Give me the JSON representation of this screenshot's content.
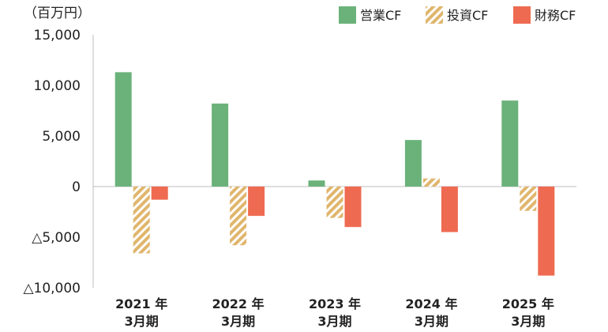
{
  "chart_data": {
    "type": "bar",
    "unit_label": "（百万円）",
    "categories": [
      {
        "year": "2021 年",
        "period": "3月期"
      },
      {
        "year": "2022 年",
        "period": "3月期"
      },
      {
        "year": "2023 年",
        "period": "3月期"
      },
      {
        "year": "2024 年",
        "period": "3月期"
      },
      {
        "year": "2025 年",
        "period": "3月期"
      }
    ],
    "series": [
      {
        "name": "営業CF",
        "color": "#6bb27a",
        "pattern": "solid",
        "values": [
          11300,
          8200,
          600,
          4600,
          8500
        ]
      },
      {
        "name": "投資CF",
        "color": "#e0b66d",
        "pattern": "hatched",
        "values": [
          -6600,
          -5800,
          -3100,
          800,
          -2400
        ]
      },
      {
        "name": "財務CF",
        "color": "#ee6b52",
        "pattern": "solid",
        "values": [
          -1300,
          -2900,
          -4000,
          -4500,
          -8800
        ]
      }
    ],
    "ylim": [
      -10000,
      15000
    ],
    "yticks": [
      {
        "value": 15000,
        "label": "15,000"
      },
      {
        "value": 10000,
        "label": "10,000"
      },
      {
        "value": 5000,
        "label": "5,000"
      },
      {
        "value": 0,
        "label": "0"
      },
      {
        "value": -5000,
        "label": "△5,000"
      },
      {
        "value": -10000,
        "label": "△10,000"
      }
    ],
    "legend_position": "top-right",
    "grid": false
  }
}
